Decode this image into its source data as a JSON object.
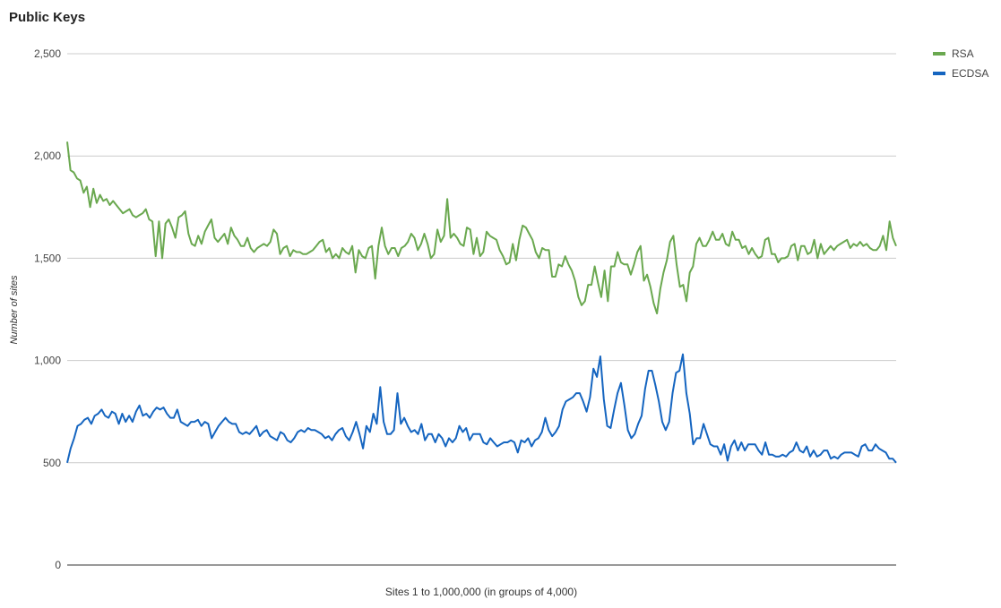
{
  "chart_data": {
    "type": "line",
    "title": "Public Keys",
    "xlabel": "Sites 1 to 1,000,000 (in groups of 4,000)",
    "ylabel": "Number of sites",
    "ylim": [
      0,
      2500
    ],
    "yticks": [
      0,
      500,
      1000,
      1500,
      2000,
      2500
    ],
    "ytick_labels": [
      "0",
      "500",
      "1,000",
      "1,500",
      "2,000",
      "2,500"
    ],
    "grid": true,
    "legend_position": "right",
    "x": {
      "start": 1,
      "end": 250,
      "step": 1
    },
    "series": [
      {
        "name": "RSA",
        "color": "#6aa84f",
        "values": [
          2070,
          1930,
          1920,
          1890,
          1880,
          1820,
          1850,
          1750,
          1840,
          1770,
          1810,
          1780,
          1790,
          1760,
          1780,
          1760,
          1740,
          1720,
          1730,
          1740,
          1710,
          1700,
          1710,
          1720,
          1740,
          1690,
          1680,
          1510,
          1680,
          1500,
          1670,
          1690,
          1650,
          1600,
          1700,
          1710,
          1730,
          1620,
          1570,
          1560,
          1610,
          1570,
          1630,
          1660,
          1690,
          1600,
          1580,
          1600,
          1620,
          1570,
          1650,
          1610,
          1590,
          1560,
          1560,
          1600,
          1550,
          1530,
          1550,
          1560,
          1570,
          1560,
          1580,
          1640,
          1620,
          1520,
          1550,
          1560,
          1510,
          1540,
          1530,
          1530,
          1520,
          1520,
          1530,
          1540,
          1560,
          1580,
          1590,
          1530,
          1550,
          1500,
          1520,
          1500,
          1550,
          1530,
          1520,
          1560,
          1430,
          1540,
          1510,
          1500,
          1550,
          1560,
          1400,
          1560,
          1650,
          1560,
          1520,
          1550,
          1550,
          1510,
          1550,
          1560,
          1580,
          1620,
          1600,
          1540,
          1570,
          1620,
          1570,
          1500,
          1520,
          1640,
          1580,
          1610,
          1790,
          1600,
          1620,
          1600,
          1570,
          1560,
          1650,
          1640,
          1520,
          1600,
          1510,
          1530,
          1630,
          1610,
          1600,
          1590,
          1540,
          1510,
          1470,
          1480,
          1570,
          1490,
          1590,
          1660,
          1650,
          1620,
          1590,
          1530,
          1500,
          1550,
          1540,
          1540,
          1410,
          1410,
          1470,
          1460,
          1510,
          1470,
          1440,
          1390,
          1310,
          1270,
          1290,
          1370,
          1370,
          1460,
          1380,
          1310,
          1440,
          1290,
          1460,
          1460,
          1530,
          1480,
          1470,
          1470,
          1420,
          1470,
          1530,
          1560,
          1390,
          1420,
          1360,
          1280,
          1230,
          1350,
          1430,
          1490,
          1580,
          1610,
          1470,
          1360,
          1370,
          1290,
          1430,
          1460,
          1570,
          1600,
          1560,
          1560,
          1590,
          1630,
          1590,
          1590,
          1620,
          1570,
          1560,
          1630,
          1590,
          1590,
          1550,
          1560,
          1520,
          1550,
          1520,
          1500,
          1510,
          1590,
          1600,
          1520,
          1520,
          1480,
          1500,
          1500,
          1510,
          1560,
          1570,
          1490,
          1560,
          1560,
          1520,
          1530,
          1590,
          1500,
          1570,
          1520,
          1540,
          1560,
          1540,
          1560,
          1570,
          1580,
          1590,
          1550,
          1570,
          1560,
          1580,
          1560,
          1570,
          1550,
          1540,
          1540,
          1560,
          1610,
          1540,
          1680,
          1600,
          1560
        ]
      },
      {
        "name": "ECDSA",
        "color": "#1565c0",
        "values": [
          500,
          570,
          620,
          680,
          690,
          710,
          720,
          690,
          730,
          740,
          760,
          730,
          720,
          750,
          740,
          690,
          740,
          700,
          730,
          700,
          750,
          780,
          730,
          740,
          720,
          750,
          770,
          760,
          770,
          740,
          720,
          720,
          760,
          700,
          690,
          680,
          700,
          700,
          710,
          680,
          700,
          690,
          620,
          650,
          680,
          700,
          720,
          700,
          690,
          690,
          650,
          640,
          650,
          640,
          660,
          680,
          630,
          650,
          660,
          630,
          620,
          610,
          650,
          640,
          610,
          600,
          620,
          650,
          660,
          650,
          670,
          660,
          660,
          650,
          640,
          620,
          630,
          610,
          640,
          660,
          670,
          630,
          610,
          650,
          700,
          640,
          570,
          680,
          650,
          740,
          690,
          870,
          700,
          640,
          640,
          660,
          840,
          690,
          720,
          680,
          650,
          660,
          640,
          690,
          610,
          640,
          640,
          600,
          640,
          620,
          580,
          620,
          600,
          620,
          680,
          650,
          670,
          610,
          640,
          640,
          640,
          600,
          590,
          620,
          600,
          580,
          590,
          600,
          600,
          610,
          600,
          550,
          610,
          600,
          620,
          580,
          610,
          620,
          650,
          720,
          660,
          630,
          650,
          680,
          760,
          800,
          810,
          820,
          840,
          840,
          800,
          750,
          820,
          960,
          920,
          1020,
          810,
          680,
          670,
          760,
          840,
          890,
          780,
          660,
          620,
          640,
          690,
          730,
          860,
          950,
          950,
          880,
          800,
          700,
          660,
          700,
          840,
          940,
          950,
          1030,
          840,
          740,
          590,
          620,
          620,
          690,
          640,
          590,
          580,
          580,
          540,
          590,
          510,
          580,
          610,
          560,
          600,
          560,
          590,
          590,
          590,
          560,
          540,
          600,
          540,
          540,
          530,
          530,
          540,
          530,
          550,
          560,
          600,
          560,
          550,
          580,
          530,
          560,
          530,
          540,
          560,
          560,
          520,
          530,
          520,
          540,
          550,
          550,
          550,
          540,
          530,
          580,
          590,
          560,
          560,
          590,
          570,
          560,
          550,
          520,
          520,
          500
        ]
      }
    ]
  }
}
